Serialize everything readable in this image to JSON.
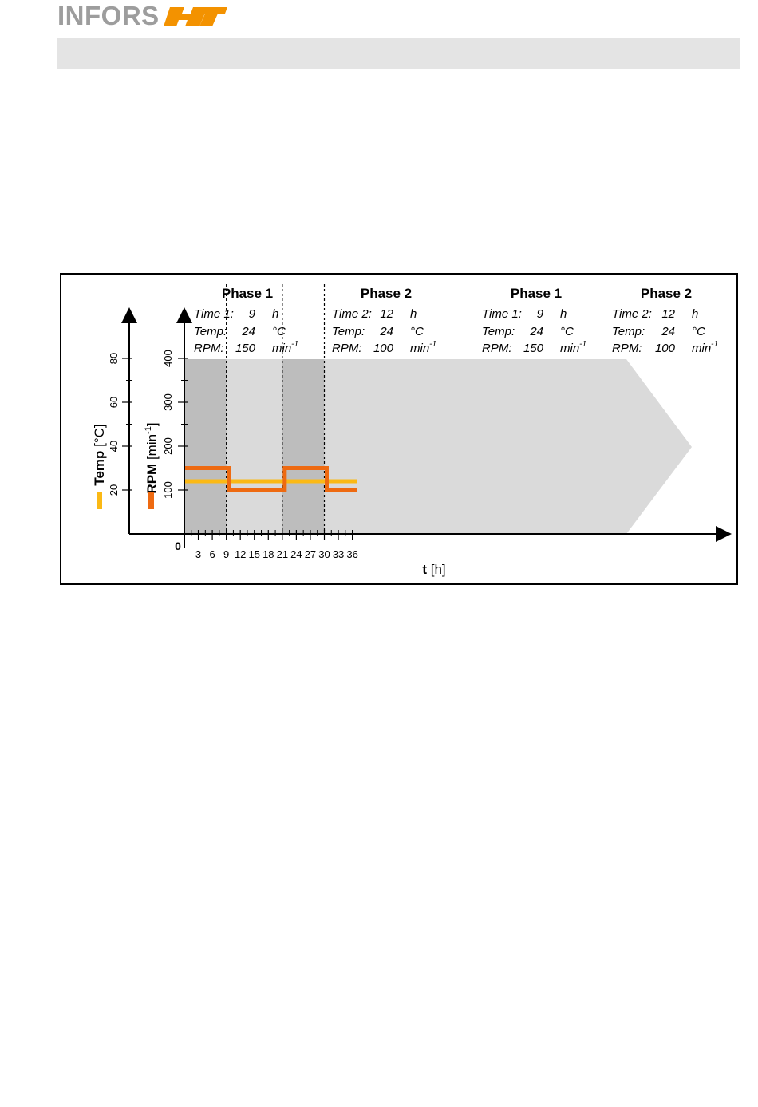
{
  "header": {
    "logo_text": "INFORS",
    "logo_mark": "HT",
    "logo_color": "#9d9d9d",
    "brand_accent": "#f39200"
  },
  "chart_data": {
    "type": "line",
    "phases": [
      {
        "name": "Phase 1",
        "time_label": "Time 1:",
        "time_value": "9",
        "time_unit": "h",
        "temp_label": "Temp:",
        "temp_value": "24",
        "temp_unit": "°C",
        "rpm_label": "RPM:",
        "rpm_value": "150",
        "rpm_unit": "min",
        "rpm_sup": "-1",
        "start": 0,
        "end": 9,
        "shade": "dark"
      },
      {
        "name": "Phase 2",
        "time_label": "Time 2:",
        "time_value": "12",
        "time_unit": "h",
        "temp_label": "Temp:",
        "temp_value": "24",
        "temp_unit": "°C",
        "rpm_label": "RPM:",
        "rpm_value": "100",
        "rpm_unit": "min",
        "rpm_sup": "-1",
        "start": 9,
        "end": 21,
        "shade": "light"
      },
      {
        "name": "Phase 1",
        "time_label": "Time 1:",
        "time_value": "9",
        "time_unit": "h",
        "temp_label": "Temp:",
        "temp_value": "24",
        "temp_unit": "°C",
        "rpm_label": "RPM:",
        "rpm_value": "150",
        "rpm_unit": "min",
        "rpm_sup": "-1",
        "start": 21,
        "end": 30,
        "shade": "dark"
      },
      {
        "name": "Phase 2",
        "time_label": "Time 2:",
        "time_value": "12",
        "time_unit": "h",
        "temp_label": "Temp:",
        "temp_value": "24",
        "temp_unit": "°C",
        "rpm_label": "RPM:",
        "rpm_value": "100",
        "rpm_unit": "min",
        "rpm_sup": "-1",
        "start": 30,
        "end": 37,
        "shade": "light"
      }
    ],
    "x": {
      "label_bold": "t",
      "label_unit": " [h]",
      "range": [
        0,
        40
      ],
      "tick_labels": [
        3,
        6,
        9,
        12,
        15,
        18,
        21,
        24,
        27,
        30,
        33,
        36
      ],
      "minor_ticks": [
        1.5,
        4.5,
        7.5,
        10.5,
        13.5,
        16.5,
        19.5,
        22.5,
        25.5,
        28.5,
        31.5,
        34.5
      ]
    },
    "origin_label": "0",
    "rpm_axis": {
      "label_bold": "RPM",
      "label_unit": " [min",
      "label_sup": "-1",
      "label_close": "]",
      "range": [
        0,
        400
      ],
      "tick_labels": [
        100,
        200,
        300,
        400
      ],
      "minor_ticks": [
        50,
        150,
        250,
        350
      ]
    },
    "temp_axis": {
      "label_bold": "Temp",
      "label_unit": " [°C]",
      "range": [
        0,
        80
      ],
      "tick_labels": [
        20,
        40,
        60,
        80
      ],
      "minor_ticks": [
        10,
        30,
        50,
        70
      ]
    },
    "series": [
      {
        "name": "Temp",
        "color": "#fbb915",
        "axis": "temp",
        "x": [
          0,
          9,
          21,
          30,
          37
        ],
        "y": [
          24,
          24,
          24,
          24,
          24
        ]
      },
      {
        "name": "RPM",
        "color": "#ee6a11",
        "axis": "rpm",
        "x": [
          0,
          9,
          21,
          30,
          37
        ],
        "y": [
          150,
          100,
          150,
          100,
          100
        ]
      }
    ],
    "colors": {
      "dark_band": "#bdbdbd",
      "light_band": "#dadada",
      "frame": "#000000"
    }
  }
}
